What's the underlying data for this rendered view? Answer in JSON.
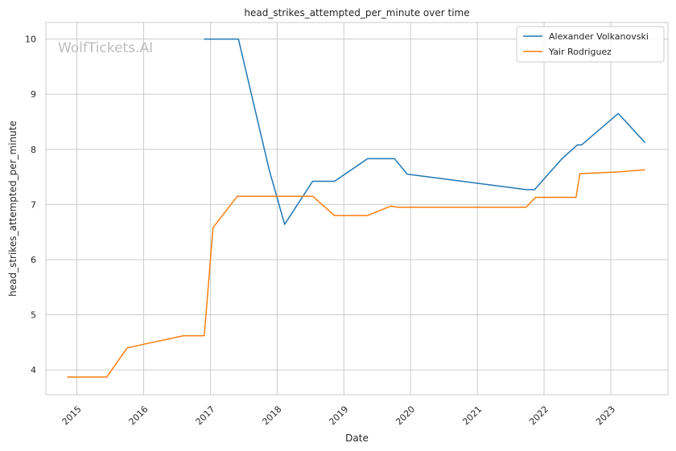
{
  "chart_data": {
    "type": "line",
    "title": "head_strikes_attempted_per_minute over time",
    "xlabel": "Date",
    "ylabel": "head_strikes_attempted_per_minute",
    "watermark": "WolfTickets.AI",
    "x_tick_labels": [
      "2015",
      "2016",
      "2017",
      "2018",
      "2019",
      "2020",
      "2021",
      "2022",
      "2023"
    ],
    "y_ticks": [
      4,
      5,
      6,
      7,
      8,
      9,
      10
    ],
    "xlim": [
      "2014-07-15",
      "2023-11-10"
    ],
    "ylim": [
      3.55,
      10.3
    ],
    "grid": true,
    "legend_position": "top-right",
    "series": [
      {
        "name": "Alexander Volkanovski",
        "color": "#1f77b4",
        "points": [
          [
            "2016-11-26",
            10.0
          ],
          [
            "2017-06-03",
            10.0
          ],
          [
            "2017-11-19",
            7.62
          ],
          [
            "2018-02-11",
            6.64
          ],
          [
            "2018-07-14",
            7.42
          ],
          [
            "2018-11-11",
            7.42
          ],
          [
            "2019-05-11",
            7.83
          ],
          [
            "2019-10-05",
            7.83
          ],
          [
            "2019-12-14",
            7.55
          ],
          [
            "2021-09-25",
            7.27
          ],
          [
            "2021-11-10",
            7.27
          ],
          [
            "2022-04-09",
            7.83
          ],
          [
            "2022-07-02",
            8.08
          ],
          [
            "2022-07-25",
            8.08
          ],
          [
            "2023-02-11",
            8.65
          ],
          [
            "2023-07-08",
            8.12
          ]
        ]
      },
      {
        "name": "Yair Rodriguez",
        "color": "#ff7f0e",
        "points": [
          [
            "2014-11-08",
            3.87
          ],
          [
            "2015-06-13",
            3.87
          ],
          [
            "2015-10-03",
            4.4
          ],
          [
            "2016-08-06",
            4.62
          ],
          [
            "2016-11-28",
            4.62
          ],
          [
            "2017-01-15",
            6.58
          ],
          [
            "2017-05-28",
            7.15
          ],
          [
            "2018-07-14",
            7.15
          ],
          [
            "2018-11-10",
            6.8
          ],
          [
            "2019-05-11",
            6.8
          ],
          [
            "2019-09-14",
            6.97
          ],
          [
            "2019-10-20",
            6.95
          ],
          [
            "2021-09-25",
            6.95
          ],
          [
            "2021-11-15",
            7.13
          ],
          [
            "2022-06-25",
            7.13
          ],
          [
            "2022-07-16",
            7.56
          ],
          [
            "2023-02-11",
            7.59
          ],
          [
            "2023-07-08",
            7.63
          ]
        ]
      }
    ]
  }
}
